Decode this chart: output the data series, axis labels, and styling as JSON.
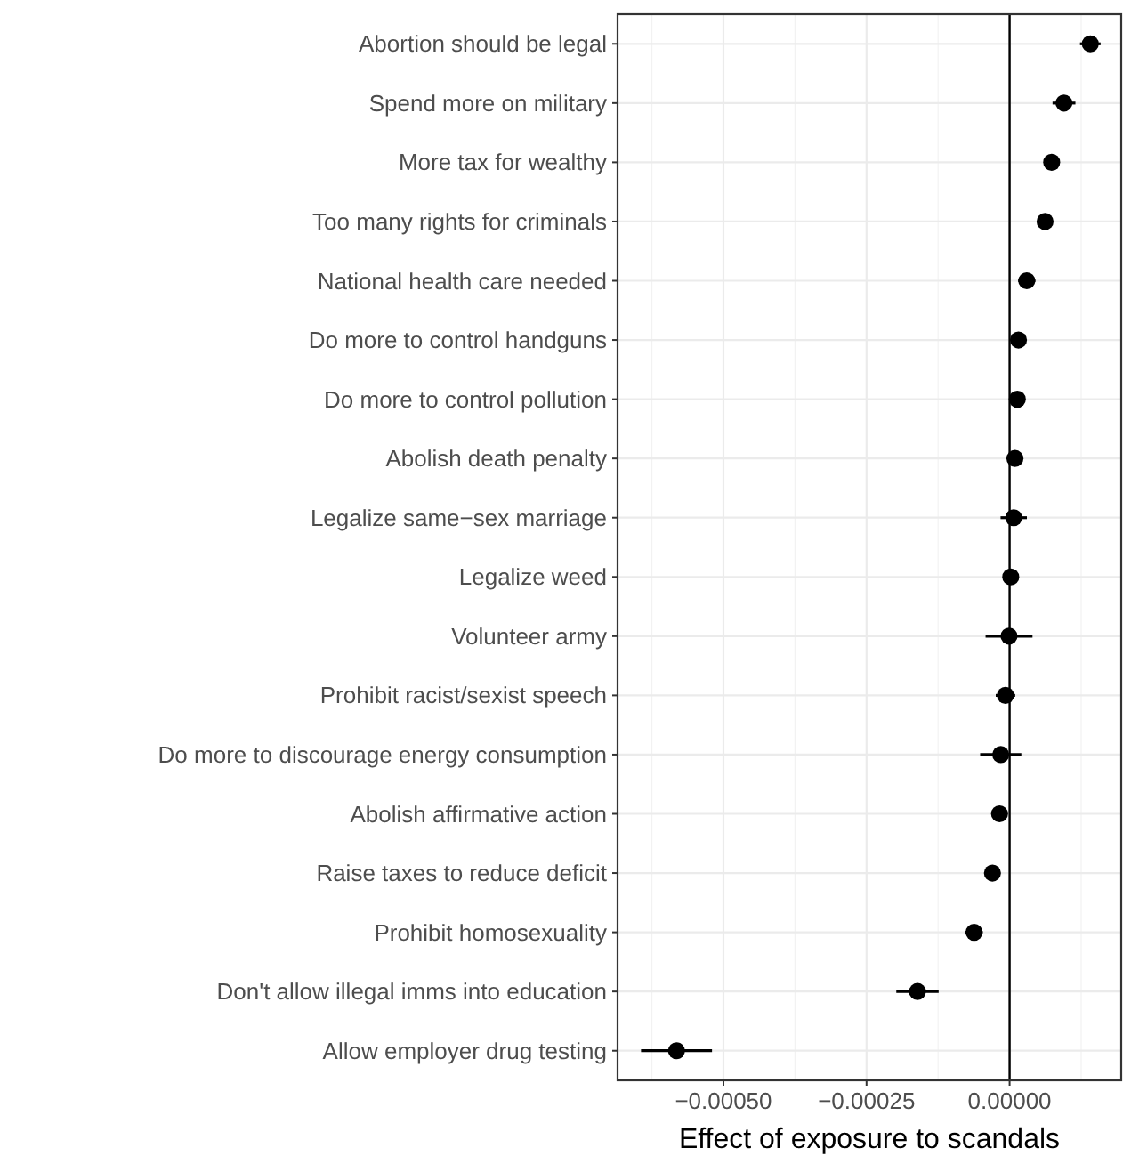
{
  "chart_data": {
    "type": "scatter",
    "orientation": "horizontal",
    "xlabel": "Effect of exposure to scandals",
    "categories": [
      "Abortion should be legal",
      "Spend more on military",
      "More tax for wealthy",
      "Too many rights for criminals",
      "National health care needed",
      "Do more to control handguns",
      "Do more to control pollution",
      "Abolish death penalty",
      "Legalize same−sex marriage",
      "Legalize weed",
      "Volunteer army",
      "Prohibit racist/sexist speech",
      "Do more to discourage energy consumption",
      "Abolish affirmative action",
      "Raise taxes to reduce deficit",
      "Prohibit homosexuality",
      "Don't allow illegal imms into education",
      "Allow employer drug testing"
    ],
    "values": [
      0.000141,
      9.5e-05,
      7.35e-05,
      6.2e-05,
      3e-05,
      1.55e-05,
      1.35e-05,
      9.3e-06,
      7.2e-06,
      2e-06,
      -1e-06,
      -7.2e-06,
      -1.55e-05,
      -1.76e-05,
      -3e-05,
      -6.2e-05,
      -0.000161,
      -0.000582
    ],
    "errors": [
      1.8e-05,
      2e-05,
      1e-05,
      1e-05,
      1.5e-05,
      1e-05,
      1e-05,
      1e-05,
      2.3e-05,
      1e-05,
      4.1e-05,
      1.7e-05,
      3.6e-05,
      1.2e-05,
      1.2e-05,
      1.5e-05,
      3.7e-05,
      6.2e-05
    ],
    "color": "#000000",
    "marker": "circle",
    "grid": true,
    "xlim": [
      -0.000685,
      0.000195
    ],
    "xticks": [
      {
        "value": -0.0005,
        "label": "−0.00050"
      },
      {
        "value": -0.00025,
        "label": "−0.00025"
      },
      {
        "value": 0,
        "label": "0.00000"
      }
    ],
    "ref_lines": [
      {
        "axis": "x",
        "value": 0,
        "color": "#000000"
      }
    ]
  }
}
